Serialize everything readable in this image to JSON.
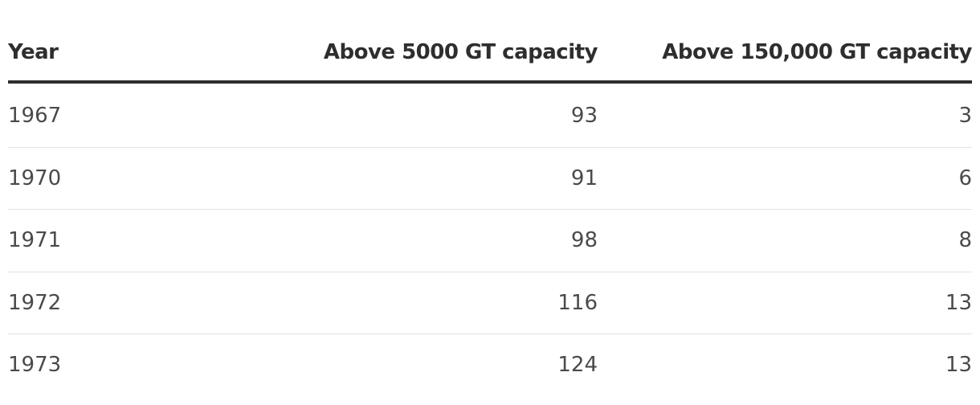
{
  "table": {
    "columns": [
      "Year",
      "Above 5000 GT capacity",
      "Above 150,000 GT capacity"
    ],
    "rows": [
      [
        1967,
        93,
        3
      ],
      [
        1970,
        91,
        6
      ],
      [
        1971,
        98,
        8
      ],
      [
        1972,
        116,
        13
      ],
      [
        1973,
        124,
        13
      ]
    ]
  }
}
